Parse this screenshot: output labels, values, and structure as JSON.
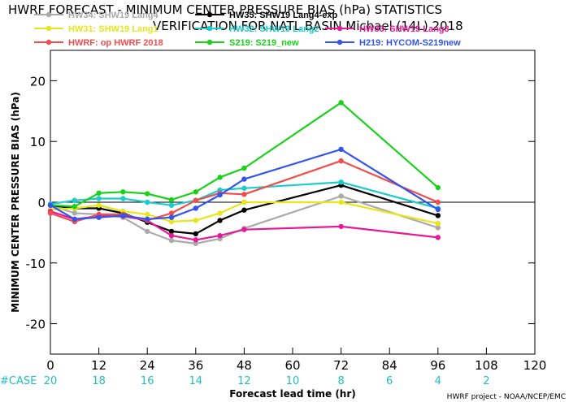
{
  "chart_data": {
    "type": "line",
    "title": "HWRF FORECAST - MINIMUM CENTER PRESSURE BIAS (hPa) STATISTICS",
    "subtitle": "VERIFICATION FOR NATL BASIN Michael (14L) 2018",
    "xlabel": "Forecast lead time (hr)",
    "ylabel": "MINIMUM CENTER PRESSURE BIAS (hPa)",
    "xlim": [
      0,
      120
    ],
    "ylim": [
      -25,
      25
    ],
    "xticks": [
      0,
      12,
      24,
      36,
      48,
      60,
      72,
      84,
      96,
      108,
      120
    ],
    "yticks": [
      -20,
      -10,
      0,
      10,
      20
    ],
    "case_label": "#CASE",
    "cases": [
      {
        "x": 0,
        "n": "20"
      },
      {
        "x": 12,
        "n": "18"
      },
      {
        "x": 24,
        "n": "16"
      },
      {
        "x": 36,
        "n": "14"
      },
      {
        "x": 48,
        "n": "12"
      },
      {
        "x": 60,
        "n": "10"
      },
      {
        "x": 72,
        "n": "8"
      },
      {
        "x": 84,
        "n": "6"
      },
      {
        "x": 96,
        "n": "4"
      },
      {
        "x": 108,
        "n": "2"
      }
    ],
    "credit": "HWRF project - NOAA/NCEP/EMC",
    "series": [
      {
        "name": "HW34: SHW19 Lang4",
        "color": "#aaaaaa",
        "x": [
          0,
          6,
          12,
          18,
          24,
          30,
          36,
          42,
          48,
          72,
          96
        ],
        "y": [
          -0.5,
          -1.8,
          -2.0,
          -2.5,
          -4.8,
          -6.3,
          -6.8,
          -6.0,
          -4.3,
          1.0,
          -4.2
        ]
      },
      {
        "name": "HW35: SHW19 Lang4-exp",
        "color": "#000000",
        "x": [
          0,
          6,
          12,
          18,
          24,
          30,
          36,
          42,
          48,
          72,
          96
        ],
        "y": [
          -0.5,
          -1.0,
          -1.0,
          -1.8,
          -3.3,
          -4.8,
          -5.2,
          -3.0,
          -1.3,
          2.8,
          -2.2
        ]
      },
      {
        "name": "HW31: SHW19 Lang1",
        "color": "#e6e61a",
        "x": [
          0,
          6,
          12,
          18,
          24,
          30,
          36,
          42,
          48,
          72,
          96
        ],
        "y": [
          -1.2,
          -1.0,
          -0.5,
          -1.5,
          -2.0,
          -3.2,
          -3.0,
          -1.8,
          0.0,
          0.0,
          -3.5
        ]
      },
      {
        "name": "HW32: SHW19 Lang2",
        "color": "#1acccc",
        "x": [
          0,
          6,
          12,
          18,
          24,
          30,
          36,
          42,
          48,
          72,
          96
        ],
        "y": [
          -0.3,
          0.3,
          0.6,
          0.6,
          0.0,
          -0.5,
          0.3,
          2.0,
          2.3,
          3.3,
          -1.0
        ]
      },
      {
        "name": "HW33: SHW19 Lang3",
        "color": "#e61a99",
        "x": [
          0,
          6,
          12,
          18,
          24,
          30,
          36,
          42,
          48,
          72,
          96
        ],
        "y": [
          -1.5,
          -2.8,
          -2.3,
          -2.3,
          -3.0,
          -5.5,
          -6.2,
          -5.5,
          -4.5,
          -4.0,
          -5.8
        ]
      },
      {
        "name": "HWRF: op HWRF 2018",
        "color": "#f24d4d",
        "x": [
          0,
          6,
          12,
          18,
          24,
          30,
          36,
          42,
          48,
          72,
          96
        ],
        "y": [
          -1.8,
          -3.2,
          -2.0,
          -2.0,
          -3.0,
          -1.8,
          0.3,
          1.5,
          1.3,
          6.8,
          0.0
        ]
      },
      {
        "name": "S219: S219_new",
        "color": "#1ad11a",
        "x": [
          0,
          6,
          12,
          18,
          24,
          30,
          36,
          42,
          48,
          72,
          96
        ],
        "y": [
          -0.5,
          -0.7,
          1.5,
          1.7,
          1.4,
          0.4,
          1.7,
          4.1,
          5.6,
          16.4,
          2.4
        ]
      },
      {
        "name": "H219: HYCOM-S219new",
        "color": "#3355ee",
        "x": [
          0,
          6,
          12,
          18,
          24,
          30,
          36,
          42,
          48,
          72,
          96
        ],
        "y": [
          -0.5,
          -2.8,
          -2.5,
          -2.2,
          -2.8,
          -2.5,
          -1.0,
          1.2,
          3.8,
          8.7,
          -1.2
        ]
      }
    ]
  }
}
